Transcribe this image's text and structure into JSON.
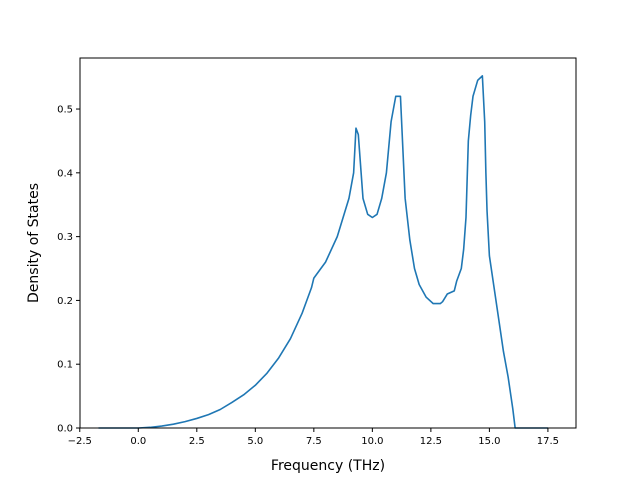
{
  "chart_data": {
    "type": "line",
    "title": "",
    "xlabel": "Frequency (THz)",
    "ylabel": "Density of States",
    "xlim": [
      -2.49,
      18.7
    ],
    "ylim": [
      0.0,
      0.58
    ],
    "xticks": [
      -2.5,
      0.0,
      2.5,
      5.0,
      7.5,
      10.0,
      12.5,
      15.0,
      17.5
    ],
    "xtick_labels": [
      "−2.5",
      "0.0",
      "2.5",
      "5.0",
      "7.5",
      "10.0",
      "12.5",
      "15.0",
      "17.5"
    ],
    "yticks": [
      0.0,
      0.1,
      0.2,
      0.3,
      0.4,
      0.5
    ],
    "ytick_labels": [
      "0.0",
      "0.1",
      "0.2",
      "0.3",
      "0.4",
      "0.5"
    ],
    "grid": false,
    "legend": null,
    "line_color": "#1f77b4",
    "series": [
      {
        "x": [
          -1.7,
          0.0,
          0.5,
          1.0,
          1.5,
          2.0,
          2.5,
          3.0,
          3.5,
          4.0,
          4.5,
          5.0,
          5.5,
          6.0,
          6.5,
          7.0,
          7.2,
          7.4,
          7.5,
          7.8,
          8.0,
          8.5,
          9.0,
          9.2,
          9.3,
          9.4,
          9.6,
          9.8,
          10.0,
          10.2,
          10.4,
          10.6,
          10.8,
          10.9,
          11.0,
          11.2,
          11.3,
          11.4,
          11.6,
          11.8,
          12.0,
          12.3,
          12.6,
          12.9,
          13.0,
          13.2,
          13.5,
          13.6,
          13.8,
          13.9,
          14.0,
          14.1,
          14.2,
          14.3,
          14.5,
          14.7,
          14.8,
          14.85,
          14.9,
          15.0,
          15.2,
          15.4,
          15.6,
          15.8,
          16.0,
          16.1,
          16.2,
          17.5
        ],
        "y": [
          0.0,
          0.0,
          0.001,
          0.003,
          0.006,
          0.01,
          0.015,
          0.021,
          0.029,
          0.04,
          0.052,
          0.067,
          0.086,
          0.11,
          0.14,
          0.18,
          0.2,
          0.22,
          0.235,
          0.25,
          0.26,
          0.3,
          0.36,
          0.4,
          0.47,
          0.46,
          0.36,
          0.335,
          0.33,
          0.335,
          0.36,
          0.4,
          0.48,
          0.5,
          0.52,
          0.52,
          0.44,
          0.36,
          0.295,
          0.25,
          0.225,
          0.205,
          0.195,
          0.195,
          0.198,
          0.21,
          0.215,
          0.23,
          0.25,
          0.28,
          0.33,
          0.45,
          0.49,
          0.52,
          0.545,
          0.552,
          0.48,
          0.4,
          0.34,
          0.27,
          0.22,
          0.17,
          0.12,
          0.08,
          0.03,
          0.0,
          0.0,
          0.0
        ]
      }
    ]
  }
}
